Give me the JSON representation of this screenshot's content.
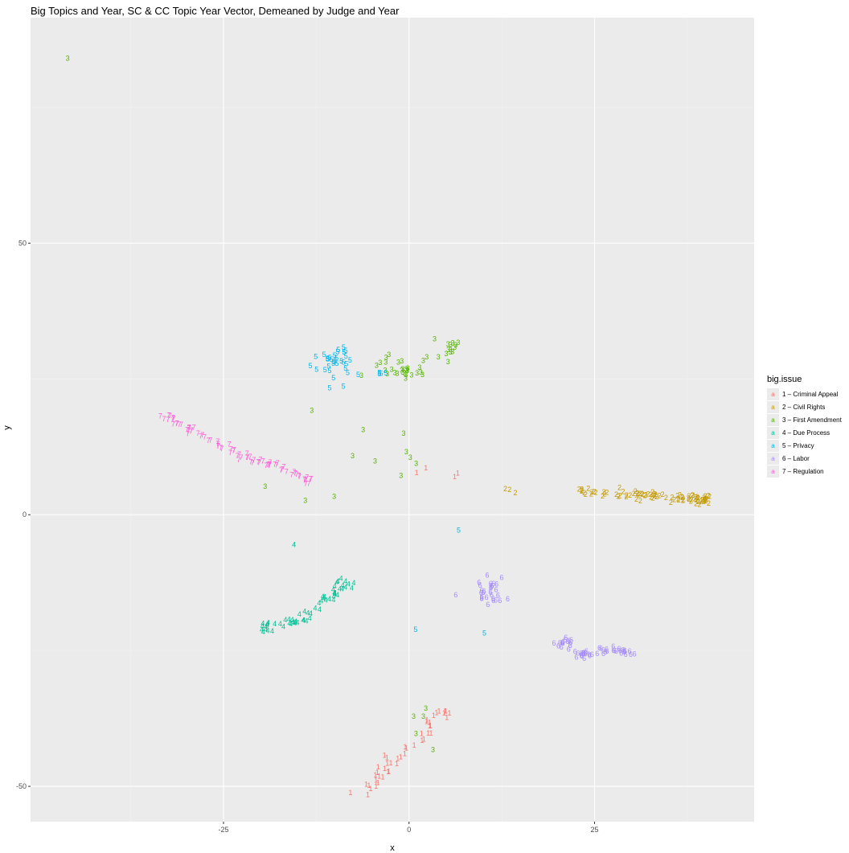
{
  "chart_data": {
    "type": "scatter",
    "title": "Big Topics and Year, SC & CC Topic Year Vector, Demeaned by Judge and Year",
    "xlabel": "x",
    "ylabel": "y",
    "xlim": [
      -51,
      46.5
    ],
    "ylim": [
      -56.5,
      91.5
    ],
    "x_ticks": [
      -25,
      0,
      25
    ],
    "x_tick_labels": [
      "-25",
      "0",
      "25"
    ],
    "y_ticks": [
      -50,
      0,
      50
    ],
    "y_tick_labels": [
      "-50",
      "0",
      "50"
    ],
    "grid": true,
    "legend_title": "big.issue",
    "legend_position": "right",
    "series": [
      {
        "name": "1 – Criminal Appeal",
        "label": "1",
        "color": "#F8766D",
        "clusters": [
          {
            "cx": -2,
            "cy": -45,
            "sx": 1.2,
            "sy": 1.0,
            "n": 45,
            "path": [
              [
                -6.5,
                -52
              ],
              [
                -4,
                -48
              ],
              [
                -1,
                -44
              ],
              [
                2,
                -41
              ],
              [
                3.5,
                -37
              ],
              [
                5.5,
                -36
              ]
            ]
          },
          {
            "cx": 5,
            "cy": 7,
            "sx": 2.0,
            "sy": 1.0,
            "n": 4
          }
        ]
      },
      {
        "name": "2 – Civil Rights",
        "label": "2",
        "color": "#C49A00",
        "clusters": [
          {
            "cx": 32,
            "cy": 3.8,
            "sx": 1.0,
            "sy": 0.9,
            "n": 90,
            "path": [
              [
                23,
                4.5
              ],
              [
                28,
                3.8
              ],
              [
                33,
                3.5
              ],
              [
                38,
                3.0
              ],
              [
                40.5,
                2.8
              ]
            ]
          },
          {
            "cx": 12.5,
            "cy": 4.5,
            "sx": 1.2,
            "sy": 0.4,
            "n": 3
          }
        ]
      },
      {
        "name": "3 – First Amendment",
        "label": "3",
        "color": "#53B400",
        "clusters": [
          {
            "cx": -0.5,
            "cy": 27,
            "sx": 2.4,
            "sy": 1.5,
            "n": 30
          },
          {
            "cx": 5.5,
            "cy": 30.5,
            "sx": 1.0,
            "sy": 0.9,
            "n": 14
          },
          {
            "cx": -46,
            "cy": 84,
            "sx": 0,
            "sy": 0,
            "n": 1
          },
          {
            "cx": 3,
            "cy": -38,
            "sx": 1.0,
            "sy": 2.5,
            "n": 5
          },
          {
            "cx": -4,
            "cy": 8,
            "sx": 7.0,
            "sy": 4.0,
            "n": 12
          }
        ]
      },
      {
        "name": "4 – Due Process",
        "label": "4",
        "color": "#00C094",
        "clusters": [
          {
            "cx": -13,
            "cy": -16,
            "sx": 1.0,
            "sy": 1.0,
            "n": 60,
            "path": [
              [
                -20,
                -21
              ],
              [
                -17,
                -20
              ],
              [
                -14,
                -19.5
              ],
              [
                -12,
                -16
              ],
              [
                -10,
                -15
              ],
              [
                -8,
                -12
              ],
              [
                -10,
                -13
              ]
            ]
          },
          {
            "cx": -15.5,
            "cy": -5.5,
            "sx": 0,
            "sy": 0,
            "n": 1
          }
        ]
      },
      {
        "name": "5 – Privacy",
        "label": "5",
        "color": "#00B6EB",
        "clusters": [
          {
            "cx": -10,
            "cy": 28,
            "sx": 1.5,
            "sy": 1.5,
            "n": 35
          },
          {
            "cx": -4,
            "cy": 26.5,
            "sx": 0.8,
            "sy": 0.8,
            "n": 4
          },
          {
            "cx": 5,
            "cy": 0,
            "sx": 4.5,
            "sy": 10.0,
            "n": 3
          }
        ]
      },
      {
        "name": "6 – Labor",
        "label": "6",
        "color": "#A58AFF",
        "clusters": [
          {
            "cx": 11,
            "cy": -14,
            "sx": 1.3,
            "sy": 1.3,
            "n": 30
          },
          {
            "cx": 26,
            "cy": -25,
            "sx": 1.0,
            "sy": 0.6,
            "n": 55,
            "path": [
              [
                20,
                -24
              ],
              [
                21.5,
                -23
              ],
              [
                22.5,
                -26
              ],
              [
                24,
                -25.5
              ],
              [
                26,
                -25
              ],
              [
                28,
                -25
              ],
              [
                30,
                -25.5
              ]
            ]
          }
        ]
      },
      {
        "name": "7 – Regulation",
        "label": "7",
        "color": "#FB61D7",
        "clusters": [
          {
            "cx": -22,
            "cy": 11.5,
            "sx": 0.8,
            "sy": 0.8,
            "n": 80,
            "path": [
              [
                -33,
                18
              ],
              [
                -30,
                16
              ],
              [
                -27,
                14
              ],
              [
                -24,
                12
              ],
              [
                -21,
                10
              ],
              [
                -18,
                9
              ],
              [
                -15,
                7
              ],
              [
                -13,
                6
              ]
            ]
          }
        ]
      }
    ]
  }
}
